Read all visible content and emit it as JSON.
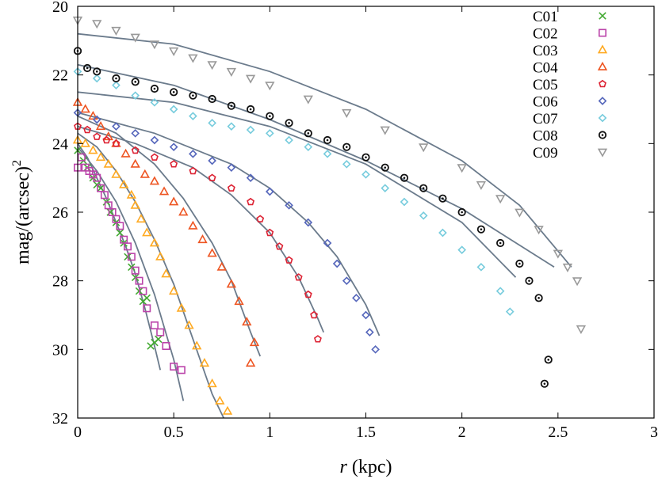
{
  "chart_data": {
    "type": "scatter",
    "title": "",
    "xlabel": "r",
    "xlabel_unit": "(kpc)",
    "ylabel": "mag/(arcsec)",
    "ylabel_exponent": "2",
    "xlim": [
      0,
      3
    ],
    "ylim": [
      32,
      20
    ],
    "y_inverted": true,
    "xticks": [
      0,
      0.5,
      1,
      1.5,
      2,
      2.5,
      3
    ],
    "xtick_labels": [
      "0",
      "0.5",
      "1",
      "1.5",
      "2",
      "2.5",
      "3"
    ],
    "yticks": [
      20,
      22,
      24,
      26,
      28,
      30,
      32
    ],
    "ytick_labels": [
      "20",
      "22",
      "24",
      "26",
      "28",
      "30",
      "32"
    ],
    "grid": false,
    "legend_position": "top-right",
    "fit_color": "#6b7b8c",
    "series": [
      {
        "name": "C01",
        "marker": "x",
        "color": "#44aa33",
        "points": [
          [
            0.0,
            24.2
          ],
          [
            0.03,
            24.5
          ],
          [
            0.05,
            24.7
          ],
          [
            0.08,
            25.0
          ],
          [
            0.1,
            25.2
          ],
          [
            0.12,
            25.3
          ],
          [
            0.15,
            25.7
          ],
          [
            0.17,
            26.0
          ],
          [
            0.2,
            26.3
          ],
          [
            0.22,
            26.6
          ],
          [
            0.24,
            26.9
          ],
          [
            0.26,
            27.3
          ],
          [
            0.28,
            27.6
          ],
          [
            0.3,
            27.9
          ],
          [
            0.32,
            28.3
          ],
          [
            0.34,
            28.6
          ],
          [
            0.36,
            28.5
          ],
          [
            0.38,
            29.9
          ],
          [
            0.4,
            29.8
          ],
          [
            0.42,
            29.7
          ]
        ],
        "fit": [
          [
            0,
            24.0
          ],
          [
            0.05,
            24.4
          ],
          [
            0.1,
            25.0
          ],
          [
            0.15,
            25.6
          ],
          [
            0.2,
            26.3
          ],
          [
            0.25,
            27.0
          ],
          [
            0.3,
            27.8
          ],
          [
            0.35,
            28.8
          ],
          [
            0.4,
            29.9
          ],
          [
            0.43,
            30.6
          ]
        ]
      },
      {
        "name": "C02",
        "marker": "square",
        "color": "#bb44aa",
        "points": [
          [
            0.0,
            24.7
          ],
          [
            0.02,
            24.4
          ],
          [
            0.04,
            24.7
          ],
          [
            0.06,
            24.8
          ],
          [
            0.08,
            24.9
          ],
          [
            0.1,
            25.0
          ],
          [
            0.12,
            25.3
          ],
          [
            0.14,
            25.5
          ],
          [
            0.16,
            25.8
          ],
          [
            0.18,
            26.0
          ],
          [
            0.2,
            26.2
          ],
          [
            0.22,
            26.4
          ],
          [
            0.24,
            26.8
          ],
          [
            0.26,
            27.0
          ],
          [
            0.28,
            27.3
          ],
          [
            0.3,
            27.7
          ],
          [
            0.32,
            28.0
          ],
          [
            0.34,
            28.3
          ],
          [
            0.36,
            28.8
          ],
          [
            0.4,
            29.3
          ],
          [
            0.43,
            29.5
          ],
          [
            0.46,
            29.9
          ],
          [
            0.5,
            30.5
          ],
          [
            0.54,
            30.6
          ]
        ],
        "fit": [
          [
            0,
            24.1
          ],
          [
            0.1,
            24.8
          ],
          [
            0.2,
            25.7
          ],
          [
            0.3,
            26.9
          ],
          [
            0.4,
            28.4
          ],
          [
            0.5,
            30.3
          ],
          [
            0.55,
            31.5
          ]
        ]
      },
      {
        "name": "C03",
        "marker": "triangle",
        "color": "#ffaa22",
        "points": [
          [
            0.0,
            23.9
          ],
          [
            0.04,
            24.0
          ],
          [
            0.08,
            24.2
          ],
          [
            0.12,
            24.4
          ],
          [
            0.16,
            24.6
          ],
          [
            0.2,
            24.9
          ],
          [
            0.24,
            25.2
          ],
          [
            0.28,
            25.5
          ],
          [
            0.3,
            25.8
          ],
          [
            0.33,
            26.2
          ],
          [
            0.36,
            26.6
          ],
          [
            0.4,
            26.9
          ],
          [
            0.43,
            27.3
          ],
          [
            0.46,
            27.8
          ],
          [
            0.5,
            28.3
          ],
          [
            0.54,
            28.8
          ],
          [
            0.58,
            29.3
          ],
          [
            0.62,
            29.9
          ],
          [
            0.66,
            30.4
          ],
          [
            0.7,
            31.0
          ],
          [
            0.74,
            31.5
          ],
          [
            0.78,
            31.8
          ]
        ],
        "fit": [
          [
            0,
            23.7
          ],
          [
            0.1,
            24.1
          ],
          [
            0.2,
            24.8
          ],
          [
            0.3,
            25.7
          ],
          [
            0.4,
            26.8
          ],
          [
            0.5,
            28.1
          ],
          [
            0.6,
            29.7
          ],
          [
            0.7,
            31.3
          ],
          [
            0.76,
            32.0
          ]
        ]
      },
      {
        "name": "C04",
        "marker": "triangle",
        "color": "#ee5522",
        "points": [
          [
            0.0,
            22.8
          ],
          [
            0.04,
            23.0
          ],
          [
            0.08,
            23.2
          ],
          [
            0.12,
            23.5
          ],
          [
            0.16,
            23.8
          ],
          [
            0.2,
            24.0
          ],
          [
            0.25,
            24.3
          ],
          [
            0.3,
            24.6
          ],
          [
            0.35,
            24.9
          ],
          [
            0.4,
            25.1
          ],
          [
            0.45,
            25.4
          ],
          [
            0.5,
            25.7
          ],
          [
            0.55,
            26.0
          ],
          [
            0.6,
            26.4
          ],
          [
            0.65,
            26.8
          ],
          [
            0.7,
            27.2
          ],
          [
            0.75,
            27.6
          ],
          [
            0.8,
            28.1
          ],
          [
            0.84,
            28.6
          ],
          [
            0.88,
            29.2
          ],
          [
            0.92,
            29.8
          ],
          [
            0.9,
            30.4
          ]
        ],
        "fit": [
          [
            0,
            23.2
          ],
          [
            0.2,
            23.7
          ],
          [
            0.4,
            24.6
          ],
          [
            0.55,
            25.6
          ],
          [
            0.7,
            26.9
          ],
          [
            0.8,
            28.0
          ],
          [
            0.9,
            29.5
          ],
          [
            0.95,
            30.2
          ]
        ]
      },
      {
        "name": "C05",
        "marker": "pentagon",
        "color": "#dd2233",
        "points": [
          [
            0.0,
            23.5
          ],
          [
            0.05,
            23.6
          ],
          [
            0.1,
            23.8
          ],
          [
            0.15,
            23.9
          ],
          [
            0.2,
            24.0
          ],
          [
            0.3,
            24.2
          ],
          [
            0.4,
            24.4
          ],
          [
            0.5,
            24.6
          ],
          [
            0.6,
            24.8
          ],
          [
            0.7,
            25.0
          ],
          [
            0.8,
            25.3
          ],
          [
            0.9,
            25.7
          ],
          [
            0.95,
            26.2
          ],
          [
            1.0,
            26.6
          ],
          [
            1.05,
            27.0
          ],
          [
            1.1,
            27.4
          ],
          [
            1.15,
            27.9
          ],
          [
            1.2,
            28.4
          ],
          [
            1.23,
            29.0
          ],
          [
            1.25,
            29.7
          ]
        ],
        "fit": [
          [
            0,
            23.5
          ],
          [
            0.3,
            24.0
          ],
          [
            0.6,
            24.7
          ],
          [
            0.8,
            25.5
          ],
          [
            1.0,
            26.6
          ],
          [
            1.15,
            27.9
          ],
          [
            1.25,
            29.1
          ],
          [
            1.28,
            29.5
          ]
        ]
      },
      {
        "name": "C06",
        "marker": "diamond",
        "color": "#5566bb",
        "points": [
          [
            0.0,
            23.1
          ],
          [
            0.1,
            23.3
          ],
          [
            0.2,
            23.5
          ],
          [
            0.3,
            23.7
          ],
          [
            0.4,
            23.9
          ],
          [
            0.5,
            24.1
          ],
          [
            0.6,
            24.3
          ],
          [
            0.7,
            24.5
          ],
          [
            0.8,
            24.7
          ],
          [
            0.9,
            25.0
          ],
          [
            1.0,
            25.4
          ],
          [
            1.1,
            25.8
          ],
          [
            1.2,
            26.3
          ],
          [
            1.3,
            26.9
          ],
          [
            1.35,
            27.5
          ],
          [
            1.4,
            28.0
          ],
          [
            1.45,
            28.5
          ],
          [
            1.5,
            29.0
          ],
          [
            1.52,
            29.5
          ],
          [
            1.55,
            30.0
          ]
        ],
        "fit": [
          [
            0,
            23.1
          ],
          [
            0.4,
            23.7
          ],
          [
            0.8,
            24.6
          ],
          [
            1.0,
            25.3
          ],
          [
            1.2,
            26.3
          ],
          [
            1.35,
            27.3
          ],
          [
            1.5,
            28.7
          ],
          [
            1.57,
            29.6
          ]
        ]
      },
      {
        "name": "C07",
        "marker": "diamond",
        "color": "#77ccdd",
        "points": [
          [
            0.0,
            21.9
          ],
          [
            0.1,
            22.1
          ],
          [
            0.2,
            22.3
          ],
          [
            0.3,
            22.6
          ],
          [
            0.4,
            22.8
          ],
          [
            0.5,
            23.0
          ],
          [
            0.6,
            23.2
          ],
          [
            0.7,
            23.4
          ],
          [
            0.8,
            23.5
          ],
          [
            0.9,
            23.6
          ],
          [
            1.0,
            23.7
          ],
          [
            1.1,
            23.9
          ],
          [
            1.2,
            24.1
          ],
          [
            1.3,
            24.3
          ],
          [
            1.4,
            24.6
          ],
          [
            1.5,
            24.9
          ],
          [
            1.6,
            25.3
          ],
          [
            1.7,
            25.7
          ],
          [
            1.8,
            26.1
          ],
          [
            1.9,
            26.6
          ],
          [
            2.0,
            27.1
          ],
          [
            2.1,
            27.6
          ],
          [
            2.2,
            28.3
          ],
          [
            2.25,
            28.9
          ]
        ],
        "fit": [
          [
            0,
            22.5
          ],
          [
            0.5,
            22.8
          ],
          [
            1.0,
            23.5
          ],
          [
            1.5,
            24.6
          ],
          [
            2.0,
            26.3
          ],
          [
            2.28,
            27.9
          ]
        ]
      },
      {
        "name": "C08",
        "marker": "circle",
        "color": "#111111",
        "points": [
          [
            0.0,
            21.3
          ],
          [
            0.05,
            21.8
          ],
          [
            0.1,
            21.9
          ],
          [
            0.2,
            22.1
          ],
          [
            0.3,
            22.2
          ],
          [
            0.4,
            22.4
          ],
          [
            0.5,
            22.5
          ],
          [
            0.6,
            22.6
          ],
          [
            0.7,
            22.7
          ],
          [
            0.8,
            22.9
          ],
          [
            0.9,
            23.0
          ],
          [
            1.0,
            23.2
          ],
          [
            1.1,
            23.4
          ],
          [
            1.2,
            23.7
          ],
          [
            1.3,
            23.9
          ],
          [
            1.4,
            24.1
          ],
          [
            1.5,
            24.4
          ],
          [
            1.6,
            24.7
          ],
          [
            1.7,
            25.0
          ],
          [
            1.8,
            25.3
          ],
          [
            1.9,
            25.6
          ],
          [
            2.0,
            26.0
          ],
          [
            2.1,
            26.5
          ],
          [
            2.2,
            26.9
          ],
          [
            2.3,
            27.5
          ],
          [
            2.35,
            28.0
          ],
          [
            2.4,
            28.5
          ],
          [
            2.45,
            30.3
          ],
          [
            2.43,
            31.0
          ]
        ],
        "fit": [
          [
            0,
            21.7
          ],
          [
            0.5,
            22.3
          ],
          [
            1.0,
            23.3
          ],
          [
            1.5,
            24.5
          ],
          [
            2.0,
            25.9
          ],
          [
            2.48,
            27.6
          ]
        ]
      },
      {
        "name": "C09",
        "marker": "triangle-down",
        "color": "#999999",
        "points": [
          [
            0.0,
            20.4
          ],
          [
            0.1,
            20.5
          ],
          [
            0.2,
            20.7
          ],
          [
            0.3,
            20.9
          ],
          [
            0.4,
            21.1
          ],
          [
            0.5,
            21.3
          ],
          [
            0.6,
            21.5
          ],
          [
            0.7,
            21.7
          ],
          [
            0.8,
            21.9
          ],
          [
            0.9,
            22.1
          ],
          [
            1.0,
            22.3
          ],
          [
            1.2,
            22.7
          ],
          [
            1.4,
            23.1
          ],
          [
            1.6,
            23.6
          ],
          [
            1.8,
            24.1
          ],
          [
            2.0,
            24.7
          ],
          [
            2.1,
            25.2
          ],
          [
            2.2,
            25.6
          ],
          [
            2.3,
            26.0
          ],
          [
            2.4,
            26.5
          ],
          [
            2.5,
            27.2
          ],
          [
            2.55,
            27.6
          ],
          [
            2.6,
            28.0
          ],
          [
            2.62,
            29.4
          ]
        ],
        "fit": [
          [
            0,
            20.8
          ],
          [
            0.5,
            21.1
          ],
          [
            1.0,
            21.9
          ],
          [
            1.5,
            23.0
          ],
          [
            2.0,
            24.5
          ],
          [
            2.3,
            25.8
          ],
          [
            2.57,
            27.6
          ]
        ]
      }
    ]
  }
}
